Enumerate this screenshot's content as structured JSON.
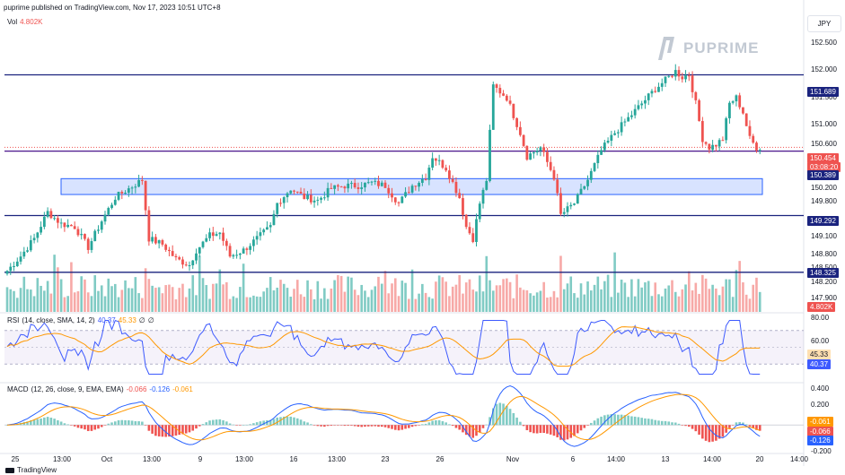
{
  "header": {
    "publish_line": "puprime published on TradingView.com, Nov 17, 2023 10:51 UTC+8",
    "vol_label": "Vol",
    "vol_value": "4.802K",
    "currency": "JPY"
  },
  "brand": {
    "logo_text": "PUPRIME",
    "footer": "TradingView"
  },
  "price_axis": {
    "ticks": [
      "152.500",
      "152.000",
      "151.500",
      "151.000",
      "150.600",
      "150.400",
      "150.200",
      "149.800",
      "149.400",
      "149.100",
      "148.800",
      "148.500",
      "148.200",
      "147.900"
    ],
    "tags": {
      "r1": "151.689",
      "current": "150.454",
      "countdown": "03:08:20",
      "s1": "150.389",
      "s2": "149.292",
      "s3": "148.325",
      "vol_tag": "4.802K"
    }
  },
  "rsi": {
    "label": "RSI",
    "params": "(14, close, SMA, 14, 2)",
    "value1": "40.37",
    "value2": "45.33",
    "value3": "∅",
    "value4": "∅",
    "axis": [
      "80.00",
      "60.00",
      "40.00"
    ],
    "tags": {
      "sma": "45.33",
      "rsi": "40.37"
    }
  },
  "macd": {
    "label": "MACD",
    "params": "(12, 26, close, 9, EMA, EMA)",
    "hist": "-0.066",
    "macd": "-0.126",
    "signal": "-0.061",
    "axis": [
      "0.400",
      "0.200",
      "-0.200"
    ],
    "tags": {
      "signal": "-0.061",
      "hist": "-0.066",
      "macd": "-0.126"
    }
  },
  "time_axis": [
    "25",
    "13:00",
    "Oct",
    "13:00",
    "9",
    "13:00",
    "16",
    "13:00",
    "23",
    "26",
    "Nov",
    "6",
    "14:00",
    "13",
    "14:00",
    "20",
    "14:00"
  ],
  "colors": {
    "up": "#26a69a",
    "down": "#ef5350",
    "level": "#1a237e",
    "box": "#2962ff",
    "rsi": "#3d5afe",
    "signal": "#ff9800"
  },
  "chart_data": {
    "type": "candlestick",
    "symbol_quote": "JPY",
    "ylim": [
      147.65,
      152.75
    ],
    "horizontal_levels": [
      151.689,
      150.389,
      149.292,
      148.325
    ],
    "zone": [
      149.65,
      149.92
    ],
    "last_price": 150.454,
    "close_path": [
      [
        0,
        148.35
      ],
      [
        4,
        148.6
      ],
      [
        8,
        148.9
      ],
      [
        12,
        149.35
      ],
      [
        16,
        149.15
      ],
      [
        20,
        149.1
      ],
      [
        24,
        148.75
      ],
      [
        28,
        149.2
      ],
      [
        32,
        149.6
      ],
      [
        36,
        149.75
      ],
      [
        40,
        149.9
      ],
      [
        42,
        148.9
      ],
      [
        46,
        148.8
      ],
      [
        50,
        148.55
      ],
      [
        54,
        148.45
      ],
      [
        56,
        148.7
      ],
      [
        60,
        148.95
      ],
      [
        63,
        149.0
      ],
      [
        66,
        148.6
      ],
      [
        70,
        148.7
      ],
      [
        74,
        148.9
      ],
      [
        78,
        149.1
      ],
      [
        80,
        149.5
      ],
      [
        84,
        149.75
      ],
      [
        88,
        149.6
      ],
      [
        92,
        149.55
      ],
      [
        96,
        149.75
      ],
      [
        100,
        149.8
      ],
      [
        104,
        149.8
      ],
      [
        108,
        149.85
      ],
      [
        112,
        149.8
      ],
      [
        116,
        149.5
      ],
      [
        120,
        149.8
      ],
      [
        124,
        149.95
      ],
      [
        126,
        150.3
      ],
      [
        130,
        150.1
      ],
      [
        134,
        149.6
      ],
      [
        136,
        149.1
      ],
      [
        138,
        148.9
      ],
      [
        140,
        149.5
      ],
      [
        142,
        149.9
      ],
      [
        144,
        151.5
      ],
      [
        148,
        151.3
      ],
      [
        152,
        150.7
      ],
      [
        154,
        150.3
      ],
      [
        158,
        150.45
      ],
      [
        162,
        149.95
      ],
      [
        164,
        149.3
      ],
      [
        168,
        149.5
      ],
      [
        172,
        149.9
      ],
      [
        176,
        150.4
      ],
      [
        180,
        150.7
      ],
      [
        184,
        150.95
      ],
      [
        188,
        151.2
      ],
      [
        192,
        151.45
      ],
      [
        196,
        151.65
      ],
      [
        198,
        151.75
      ],
      [
        200,
        151.65
      ],
      [
        202,
        151.7
      ],
      [
        204,
        151.2
      ],
      [
        206,
        150.6
      ],
      [
        208,
        150.45
      ],
      [
        210,
        150.5
      ],
      [
        212,
        150.6
      ],
      [
        214,
        151.2
      ],
      [
        216,
        151.3
      ],
      [
        218,
        151.05
      ],
      [
        220,
        150.6
      ],
      [
        222,
        150.45
      ]
    ],
    "rsi_range": [
      10,
      90
    ],
    "macd_range": [
      -0.3,
      0.45
    ]
  }
}
